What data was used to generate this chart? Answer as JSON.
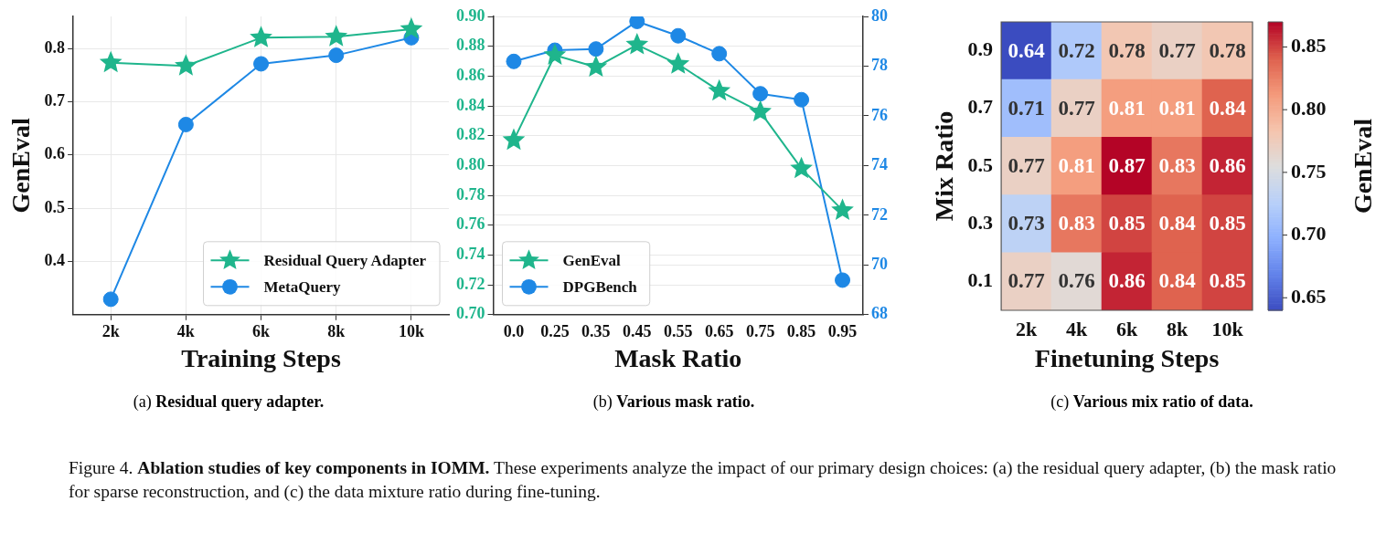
{
  "chart_data": [
    {
      "type": "line",
      "xlabel": "Training Steps",
      "ylabel": "GenEval",
      "categories": [
        "2k",
        "4k",
        "6k",
        "8k",
        "10k"
      ],
      "series": [
        {
          "name": "Residual Query Adapter",
          "color": "#1fb58c",
          "marker": "star",
          "values": [
            0.773,
            0.767,
            0.82,
            0.822,
            0.836
          ]
        },
        {
          "name": "MetaQuery",
          "color": "#1e88e5",
          "marker": "circle",
          "values": [
            0.329,
            0.657,
            0.771,
            0.787,
            0.82
          ]
        }
      ],
      "ylim": [
        0.3,
        0.86
      ],
      "yticks": [
        0.4,
        0.5,
        0.6,
        0.7,
        0.8
      ],
      "grid": true,
      "legend": "bottom right",
      "annotations": [
        "(a) Residual query adapter."
      ]
    },
    {
      "type": "line",
      "xlabel": "Mask Ratio",
      "categories": [
        "0.0",
        "0.25",
        "0.35",
        "0.45",
        "0.55",
        "0.65",
        "0.75",
        "0.85",
        "0.95"
      ],
      "series": [
        {
          "name": "GenEval",
          "color": "#1fb58c",
          "marker": "star",
          "axis": "y",
          "values": [
            0.817,
            0.874,
            0.866,
            0.881,
            0.868,
            0.85,
            0.836,
            0.798,
            0.77
          ]
        },
        {
          "name": "DPGBench",
          "color": "#1e88e5",
          "marker": "circle",
          "axis": "y2",
          "values": [
            78.19,
            78.64,
            78.69,
            79.8,
            79.22,
            78.5,
            76.89,
            76.65,
            69.39
          ]
        }
      ],
      "ylim": [
        0.7,
        0.9
      ],
      "yticks": [
        {
          "value": 0.7,
          "label": "0.70"
        },
        {
          "value": 0.72,
          "label": "0.72"
        },
        {
          "value": 0.74,
          "label": "0.74"
        },
        {
          "value": 0.76,
          "label": "0.76"
        },
        {
          "value": 0.78,
          "label": "0.78"
        },
        {
          "value": 0.8,
          "label": "0.80"
        },
        {
          "value": 0.82,
          "label": "0.82"
        },
        {
          "value": 0.84,
          "label": "0.84"
        },
        {
          "value": 0.86,
          "label": "0.86"
        },
        {
          "value": 0.88,
          "label": "0.88"
        },
        {
          "value": 0.9,
          "label": "0.90"
        }
      ],
      "y2lim": [
        68,
        80
      ],
      "y2ticks": [
        68,
        70,
        72,
        74,
        76,
        78,
        80
      ],
      "grid": "y",
      "legend": "bottom left",
      "annotations": [
        "(b) Various mask ratio."
      ]
    },
    {
      "type": "heatmap",
      "xlabel": "Finetuning Steps",
      "ylabel": "Mix Ratio",
      "clabel": "GenEval",
      "categories": [
        "2k",
        "4k",
        "6k",
        "8k",
        "10k"
      ],
      "y_categories": [
        "0.9",
        "0.7",
        "0.5",
        "0.3",
        "0.1"
      ],
      "cells": [
        [
          0.64,
          0.72,
          0.78,
          0.77,
          0.78
        ],
        [
          0.71,
          0.77,
          0.81,
          0.81,
          0.84
        ],
        [
          0.77,
          0.81,
          0.87,
          0.83,
          0.86
        ],
        [
          0.73,
          0.83,
          0.85,
          0.84,
          0.85
        ],
        [
          0.77,
          0.76,
          0.86,
          0.84,
          0.85
        ]
      ],
      "clim": [
        0.64,
        0.87
      ],
      "cticks": [
        {
          "value": 0.65,
          "label": "0.65"
        },
        {
          "value": 0.7,
          "label": "0.70"
        },
        {
          "value": 0.75,
          "label": "0.75"
        },
        {
          "value": 0.8,
          "label": "0.80"
        },
        {
          "value": 0.85,
          "label": "0.85"
        }
      ],
      "data_labels": true,
      "annotations": [
        "(c) Various mix ratio of data.",
        "Figure 4.",
        "Ablation studies of key components in IOMM.",
        "These experiments analyze the impact of our primary design choices: (a) the residual query adapter, (b) the mask ratio for sparse reconstruction, and (c) the data mixture ratio during fine-tuning."
      ]
    }
  ]
}
